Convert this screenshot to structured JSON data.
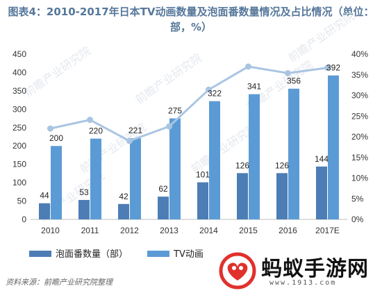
{
  "title": "图表4：2010-2017年日本TV动画数量及泡面番数量情况及占比情况（单位：部，%）",
  "source": "资料来源：前瞻产业研究院整理",
  "watermark": {
    "text": "前瞻产业研究院",
    "brand": "蚂蚁手游网",
    "url": "www.1913.com"
  },
  "colors": {
    "bar_dark": "#4d7db5",
    "bar_light": "#5b9bd5",
    "line": "#a9c5e2",
    "axis_text": "#333333",
    "grid": "#dddddd",
    "brand_red": "#e0312c"
  },
  "chart_data": {
    "type": "bar",
    "categories": [
      "2010",
      "2011",
      "2012",
      "2013",
      "2014",
      "2015",
      "2016",
      "2017E"
    ],
    "series": [
      {
        "name": "泡面番数量（部）",
        "type": "bar",
        "axis": "left",
        "color": "#4d7db5",
        "values": [
          44,
          53,
          42,
          62,
          101,
          126,
          126,
          144
        ]
      },
      {
        "name": "TV动画",
        "type": "bar",
        "axis": "left",
        "color": "#5b9bd5",
        "values": [
          200,
          220,
          221,
          275,
          322,
          341,
          356,
          392
        ]
      },
      {
        "name": "",
        "type": "line",
        "axis": "right",
        "color": "#a9c5e2",
        "values": [
          22.0,
          24.1,
          19.0,
          22.5,
          31.4,
          37.0,
          35.4,
          36.7
        ]
      }
    ],
    "y_left": {
      "min": 0,
      "max": 450,
      "step": 50,
      "tick_labels": [
        "0",
        "50",
        "100",
        "150",
        "200",
        "250",
        "300",
        "350",
        "400",
        "450"
      ]
    },
    "y_right": {
      "min": 0,
      "max": 40,
      "step": 5,
      "tick_labels": [
        "0%",
        "5%",
        "10%",
        "15%",
        "20%",
        "25%",
        "30%",
        "35%",
        "40%"
      ]
    },
    "legend_position": "bottom",
    "grid": false
  }
}
